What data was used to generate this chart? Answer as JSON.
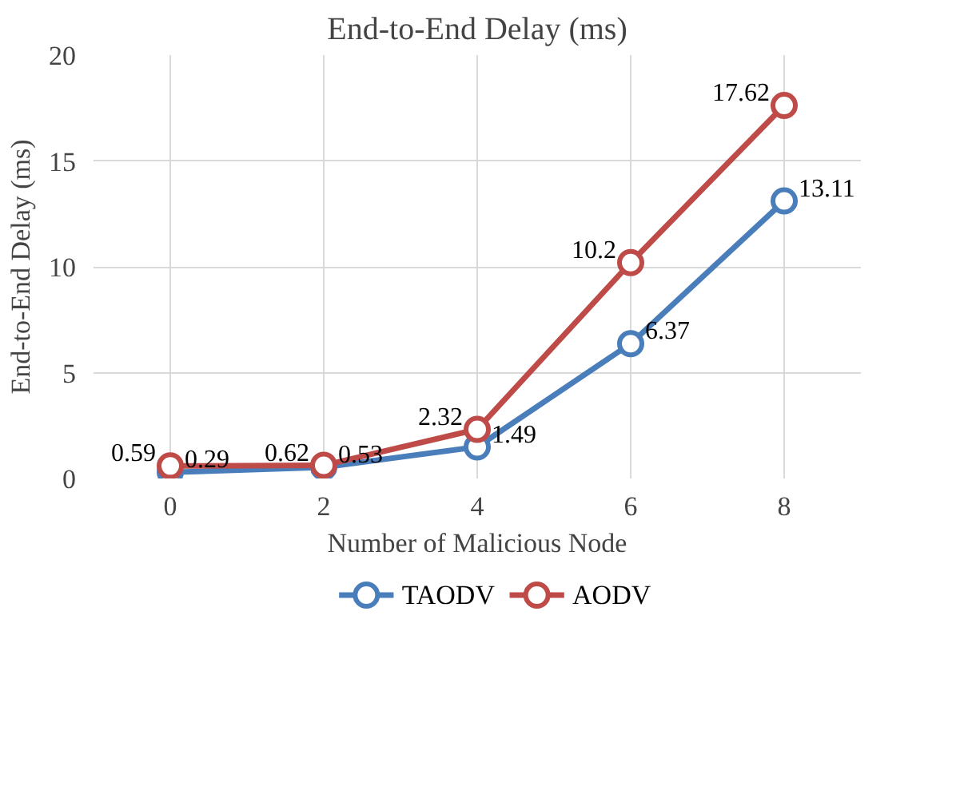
{
  "chart_data": {
    "type": "line",
    "title": "End-to-End Delay (ms)",
    "xlabel": "Number of Malicious Node",
    "ylabel": "End-to-End Delay (ms)",
    "categories": [
      "0",
      "2",
      "4",
      "6",
      "8"
    ],
    "series": [
      {
        "name": "TAODV",
        "color": "#4a7ebb",
        "values": [
          0.29,
          0.53,
          1.49,
          6.37,
          13.11
        ]
      },
      {
        "name": "AODV",
        "color": "#be4b48",
        "values": [
          0.59,
          0.62,
          2.32,
          10.2,
          17.62
        ]
      }
    ],
    "ylim": [
      0,
      20
    ],
    "yticks": [
      0,
      5,
      10,
      15,
      20
    ],
    "grid": true,
    "legend": "bottom",
    "marker": "circle",
    "data_labels": true
  }
}
